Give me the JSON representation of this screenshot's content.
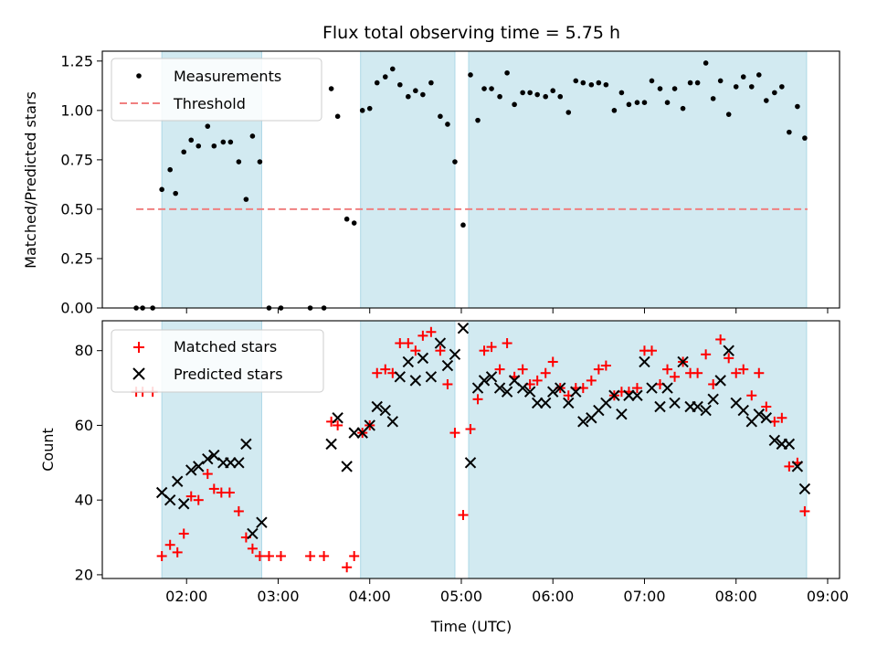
{
  "chart_data": {
    "type": "scatter",
    "title": "Flux total observing time = 5.75 h",
    "xlabel": "Time (UTC)",
    "x_unit": "hours UTC",
    "xlim": [
      1.08,
      9.13
    ],
    "xticks": [
      2,
      3,
      4,
      5,
      6,
      7,
      8,
      9
    ],
    "xtick_labels": [
      "02:00",
      "03:00",
      "04:00",
      "05:00",
      "06:00",
      "07:00",
      "08:00",
      "09:00"
    ],
    "shaded_intervals": [
      [
        1.73,
        2.82
      ],
      [
        3.9,
        4.93
      ],
      [
        5.08,
        8.77
      ]
    ],
    "shade_color": "#add8e6",
    "top": {
      "ylabel": "Matched/Predicted stars",
      "ylim": [
        0,
        1.3
      ],
      "yticks": [
        0,
        0.25,
        0.5,
        0.75,
        1.0,
        1.25
      ],
      "ytick_labels": [
        "0.00",
        "0.25",
        "0.50",
        "0.75",
        "1.00",
        "1.25"
      ],
      "threshold": {
        "name": "Threshold",
        "y": 0.5,
        "x_range": [
          1.45,
          8.78
        ],
        "color": "#f08080"
      },
      "series": [
        {
          "name": "Measurements",
          "color": "#000000",
          "x": [
            1.45,
            1.52,
            1.63,
            1.73,
            1.82,
            1.88,
            1.97,
            2.05,
            2.13,
            2.23,
            2.3,
            2.4,
            2.48,
            2.57,
            2.65,
            2.72,
            2.8,
            2.9,
            3.03,
            3.35,
            3.5,
            3.58,
            3.65,
            3.75,
            3.83,
            3.92,
            4.0,
            4.08,
            4.17,
            4.25,
            4.33,
            4.42,
            4.5,
            4.58,
            4.67,
            4.77,
            4.85,
            4.93,
            5.02,
            5.1,
            5.18,
            5.25,
            5.33,
            5.42,
            5.5,
            5.58,
            5.67,
            5.75,
            5.83,
            5.92,
            6.0,
            6.08,
            6.17,
            6.25,
            6.33,
            6.42,
            6.5,
            6.58,
            6.67,
            6.75,
            6.83,
            6.92,
            7.0,
            7.08,
            7.17,
            7.25,
            7.33,
            7.42,
            7.5,
            7.58,
            7.67,
            7.75,
            7.83,
            7.92,
            8.0,
            8.08,
            8.17,
            8.25,
            8.33,
            8.42,
            8.5,
            8.58,
            8.67,
            8.75
          ],
          "y": [
            0.0,
            0.0,
            0.0,
            0.6,
            0.7,
            0.58,
            0.79,
            0.85,
            0.82,
            0.92,
            0.82,
            0.84,
            0.84,
            0.74,
            0.55,
            0.87,
            0.74,
            0.0,
            0.0,
            0.0,
            0.0,
            1.11,
            0.97,
            0.45,
            0.43,
            1.0,
            1.01,
            1.14,
            1.17,
            1.21,
            1.13,
            1.07,
            1.1,
            1.08,
            1.14,
            0.97,
            0.93,
            0.74,
            0.42,
            1.18,
            0.95,
            1.11,
            1.11,
            1.07,
            1.19,
            1.03,
            1.09,
            1.09,
            1.08,
            1.07,
            1.1,
            1.07,
            0.99,
            1.15,
            1.14,
            1.13,
            1.14,
            1.13,
            1.0,
            1.09,
            1.03,
            1.04,
            1.04,
            1.15,
            1.11,
            1.04,
            1.11,
            1.01,
            1.14,
            1.14,
            1.24,
            1.06,
            1.15,
            0.98,
            1.12,
            1.17,
            1.12,
            1.18,
            1.05,
            1.09,
            1.12,
            0.89,
            1.02,
            0.86
          ]
        }
      ]
    },
    "bottom": {
      "ylabel": "Count",
      "ylim": [
        19,
        88
      ],
      "yticks": [
        20,
        40,
        60,
        80
      ],
      "ytick_labels": [
        "20",
        "40",
        "60",
        "80"
      ],
      "series": [
        {
          "name": "Matched stars",
          "color": "#ff0000",
          "marker": "plus",
          "x": [
            1.45,
            1.52,
            1.63,
            1.73,
            1.82,
            1.9,
            1.97,
            2.05,
            2.13,
            2.23,
            2.3,
            2.38,
            2.47,
            2.57,
            2.65,
            2.72,
            2.8,
            2.9,
            3.03,
            3.35,
            3.5,
            3.58,
            3.65,
            3.75,
            3.83,
            3.92,
            4.0,
            4.08,
            4.17,
            4.25,
            4.33,
            4.42,
            4.5,
            4.58,
            4.67,
            4.77,
            4.85,
            4.93,
            5.02,
            5.1,
            5.18,
            5.25,
            5.33,
            5.42,
            5.5,
            5.58,
            5.67,
            5.75,
            5.83,
            5.92,
            6.0,
            6.08,
            6.17,
            6.25,
            6.33,
            6.42,
            6.5,
            6.58,
            6.67,
            6.75,
            6.83,
            6.92,
            7.0,
            7.08,
            7.17,
            7.25,
            7.33,
            7.42,
            7.5,
            7.58,
            7.67,
            7.75,
            7.83,
            7.92,
            8.0,
            8.08,
            8.17,
            8.25,
            8.33,
            8.42,
            8.5,
            8.58,
            8.67,
            8.75
          ],
          "y": [
            69,
            69,
            69,
            25,
            28,
            26,
            31,
            41,
            40,
            47,
            43,
            42,
            42,
            37,
            30,
            27,
            25,
            25,
            25,
            25,
            25,
            61,
            60,
            22,
            25,
            58,
            60,
            74,
            75,
            74,
            82,
            82,
            80,
            84,
            85,
            80,
            71,
            58,
            36,
            59,
            67,
            80,
            81,
            75,
            82,
            73,
            75,
            71,
            72,
            74,
            77,
            70,
            68,
            70,
            70,
            72,
            75,
            76,
            68,
            69,
            69,
            70,
            80,
            80,
            71,
            75,
            73,
            77,
            74,
            74,
            79,
            71,
            83,
            78,
            74,
            75,
            68,
            74,
            65,
            61,
            62,
            49,
            50,
            37
          ]
        },
        {
          "name": "Predicted stars",
          "color": "#000000",
          "marker": "x",
          "x": [
            1.73,
            1.82,
            1.9,
            1.97,
            2.05,
            2.13,
            2.23,
            2.3,
            2.4,
            2.48,
            2.57,
            2.65,
            2.72,
            2.82,
            3.58,
            3.65,
            3.75,
            3.83,
            3.92,
            4.0,
            4.08,
            4.17,
            4.25,
            4.33,
            4.42,
            4.5,
            4.58,
            4.67,
            4.77,
            4.85,
            4.93,
            5.02,
            5.1,
            5.18,
            5.25,
            5.33,
            5.42,
            5.5,
            5.58,
            5.67,
            5.75,
            5.83,
            5.92,
            6.0,
            6.08,
            6.17,
            6.25,
            6.33,
            6.42,
            6.5,
            6.58,
            6.67,
            6.75,
            6.83,
            6.92,
            7.0,
            7.08,
            7.17,
            7.25,
            7.33,
            7.42,
            7.5,
            7.58,
            7.67,
            7.75,
            7.83,
            7.92,
            8.0,
            8.08,
            8.17,
            8.25,
            8.33,
            8.42,
            8.5,
            8.58,
            8.67,
            8.75
          ],
          "y": [
            42,
            40,
            45,
            39,
            48,
            49,
            51,
            52,
            50,
            50,
            50,
            55,
            31,
            34,
            55,
            62,
            49,
            58,
            58,
            60,
            65,
            64,
            61,
            73,
            77,
            72,
            78,
            73,
            82,
            76,
            79,
            86,
            50,
            70,
            72,
            73,
            70,
            69,
            72,
            70,
            69,
            66,
            66,
            69,
            70,
            66,
            69,
            61,
            62,
            64,
            66,
            68,
            63,
            68,
            68,
            77,
            70,
            65,
            70,
            66,
            77,
            65,
            65,
            64,
            67,
            72,
            80,
            66,
            64,
            61,
            63,
            62,
            56,
            55,
            55,
            49,
            43
          ]
        }
      ]
    }
  }
}
